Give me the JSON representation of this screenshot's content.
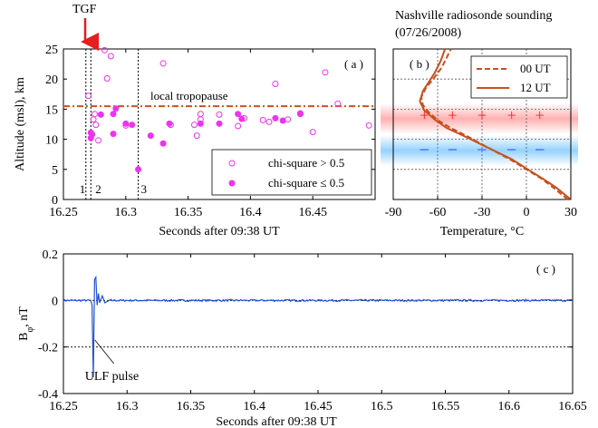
{
  "chart_data": [
    {
      "panel": "a",
      "type": "scatter",
      "panel_label": "( a )",
      "xlabel": "Seconds after 09:38 UT",
      "ylabel": "Altitude (msl), km",
      "xlim": [
        16.25,
        16.5
      ],
      "ylim": [
        0,
        25
      ],
      "xticks": [
        16.25,
        16.3,
        16.35,
        16.4,
        16.45
      ],
      "xtick_labels": [
        "16.25",
        "16.3",
        "16.35",
        "16.4",
        "16.45"
      ],
      "yticks": [
        0,
        5,
        10,
        15,
        20,
        25
      ],
      "ytick_labels": [
        "0",
        "5",
        "10",
        "15",
        "20",
        "25"
      ],
      "grid": false,
      "legend_position": "bottom-right",
      "annotations": {
        "tgf_label": "TGF",
        "tgf_x": 16.271,
        "tropopause_label": "local tropopause",
        "tropopause_altitude": 15.5,
        "reference_lines": [
          {
            "label": "1",
            "x": 16.268
          },
          {
            "label": "2",
            "x": 16.272
          },
          {
            "label": "3",
            "x": 16.31
          }
        ]
      },
      "series": [
        {
          "name": "chi-square > 0.5",
          "marker": "open-circle",
          "color": "#ee33ee",
          "points": [
            [
              16.27,
              17.2
            ],
            [
              16.285,
              20.1
            ],
            [
              16.288,
              23.8
            ],
            [
              16.283,
              24.8
            ],
            [
              16.274,
              13.3
            ],
            [
              16.276,
              12.4
            ],
            [
              16.278,
              9.8
            ],
            [
              16.275,
              14.2
            ],
            [
              16.3,
              12.3
            ],
            [
              16.33,
              22.6
            ],
            [
              16.336,
              12.4
            ],
            [
              16.355,
              12.4
            ],
            [
              16.357,
              10.6
            ],
            [
              16.36,
              13.3
            ],
            [
              16.36,
              14.2
            ],
            [
              16.375,
              14.1
            ],
            [
              16.39,
              12.2
            ],
            [
              16.395,
              13.5
            ],
            [
              16.41,
              13.2
            ],
            [
              16.415,
              12.9
            ],
            [
              16.42,
              19.2
            ],
            [
              16.43,
              13.3
            ],
            [
              16.44,
              14.2
            ],
            [
              16.45,
              11.2
            ],
            [
              16.46,
              21.1
            ],
            [
              16.47,
              15.9
            ],
            [
              16.495,
              12.3
            ]
          ]
        },
        {
          "name": "chi-square ≤ 0.5",
          "marker": "filled-circle",
          "color": "#ee33ee",
          "points": [
            [
              16.272,
              11.1
            ],
            [
              16.272,
              10.2
            ],
            [
              16.273,
              10.8
            ],
            [
              16.28,
              14.1
            ],
            [
              16.29,
              14.2
            ],
            [
              16.292,
              15.1
            ],
            [
              16.29,
              10.9
            ],
            [
              16.3,
              12.6
            ],
            [
              16.305,
              12.4
            ],
            [
              16.31,
              5.0
            ],
            [
              16.32,
              10.6
            ],
            [
              16.33,
              9.3
            ],
            [
              16.335,
              12.6
            ],
            [
              16.36,
              12.6
            ],
            [
              16.375,
              12.6
            ],
            [
              16.39,
              14.2
            ],
            [
              16.393,
              13.4
            ],
            [
              16.42,
              13.5
            ],
            [
              16.426,
              13.1
            ],
            [
              16.44,
              14.3
            ]
          ]
        }
      ]
    },
    {
      "panel": "b",
      "type": "line",
      "title_line1": "Nashville radiosonde sounding",
      "title_line2": "(07/26/2008)",
      "panel_label": "( b )",
      "xlabel": "Temperature, °C",
      "xlim": [
        -90,
        30
      ],
      "ylim": [
        0,
        25
      ],
      "xticks": [
        -90,
        -60,
        -30,
        0,
        30
      ],
      "xtick_labels": [
        "-90",
        "-60",
        "-30",
        "0",
        "30"
      ],
      "grid": true,
      "legend_position": "top-right",
      "charge_layers": {
        "positive": {
          "symbol": "+",
          "altitude": 14,
          "x": [
            -69,
            -50,
            -30,
            -10,
            9
          ],
          "color": "#ff1e1e"
        },
        "negative": {
          "symbol": "–",
          "altitude": 8.5,
          "x": [
            -69,
            -50,
            -30,
            -10,
            9
          ],
          "color": "#1e3cff"
        }
      },
      "series": [
        {
          "name": "00 UT",
          "style": "dashed",
          "color": "#c8501e",
          "points": [
            [
              28,
              0
            ],
            [
              18,
              2
            ],
            [
              10,
              3.5
            ],
            [
              0,
              5
            ],
            [
              -10,
              6.5
            ],
            [
              -25,
              8.5
            ],
            [
              -40,
              10.5
            ],
            [
              -52,
              12
            ],
            [
              -60,
              13.2
            ],
            [
              -66,
              14.5
            ],
            [
              -70,
              15.7
            ],
            [
              -71,
              17
            ],
            [
              -68,
              18.5
            ],
            [
              -63,
              20
            ],
            [
              -57,
              22
            ],
            [
              -53,
              24
            ],
            [
              -51,
              25
            ]
          ]
        },
        {
          "name": "12 UT",
          "style": "solid",
          "color": "#c8501e",
          "points": [
            [
              30,
              0
            ],
            [
              20,
              2
            ],
            [
              12,
              3.3
            ],
            [
              1,
              5
            ],
            [
              -10,
              6.7
            ],
            [
              -26,
              8.6
            ],
            [
              -41,
              10.4
            ],
            [
              -54,
              11.9
            ],
            [
              -62,
              13.3
            ],
            [
              -69,
              14.8
            ],
            [
              -72,
              16.3
            ],
            [
              -70,
              18
            ],
            [
              -66,
              19.5
            ],
            [
              -62,
              21
            ],
            [
              -58,
              23
            ],
            [
              -55,
              25
            ]
          ]
        }
      ]
    },
    {
      "panel": "c",
      "type": "line",
      "panel_label": "( c )",
      "xlabel": "Seconds after 09:38 UT",
      "ylabel": "B_φ, nT",
      "xlim": [
        16.25,
        16.65
      ],
      "ylim": [
        -0.4,
        0.2
      ],
      "xticks": [
        16.25,
        16.3,
        16.35,
        16.4,
        16.45,
        16.5,
        16.55,
        16.6,
        16.65
      ],
      "xtick_labels": [
        "16.25",
        "16.3",
        "16.35",
        "16.4",
        "16.45",
        "16.5",
        "16.55",
        "16.6",
        "16.65"
      ],
      "yticks": [
        -0.4,
        -0.2,
        0,
        0.2
      ],
      "ytick_labels": [
        "-0.4",
        "-0.2",
        "0",
        "0.2"
      ],
      "reference_lines_y": [
        0,
        -0.2
      ],
      "annotation": {
        "label": "ULF pulse",
        "x": 16.274,
        "y": -0.17
      },
      "series": [
        {
          "name": "",
          "color": "#1e50d2",
          "baseline_noise_amplitude": 0.004,
          "pulse": [
            [
              16.2715,
              0
            ],
            [
              16.2725,
              -0.02
            ],
            [
              16.2735,
              -0.33
            ],
            [
              16.2745,
              0.09
            ],
            [
              16.2755,
              0.1
            ],
            [
              16.2765,
              -0.02
            ],
            [
              16.2775,
              0.03
            ],
            [
              16.2785,
              -0.01
            ],
            [
              16.2805,
              0.02
            ],
            [
              16.2825,
              -0.01
            ],
            [
              16.286,
              0
            ]
          ]
        }
      ]
    }
  ]
}
